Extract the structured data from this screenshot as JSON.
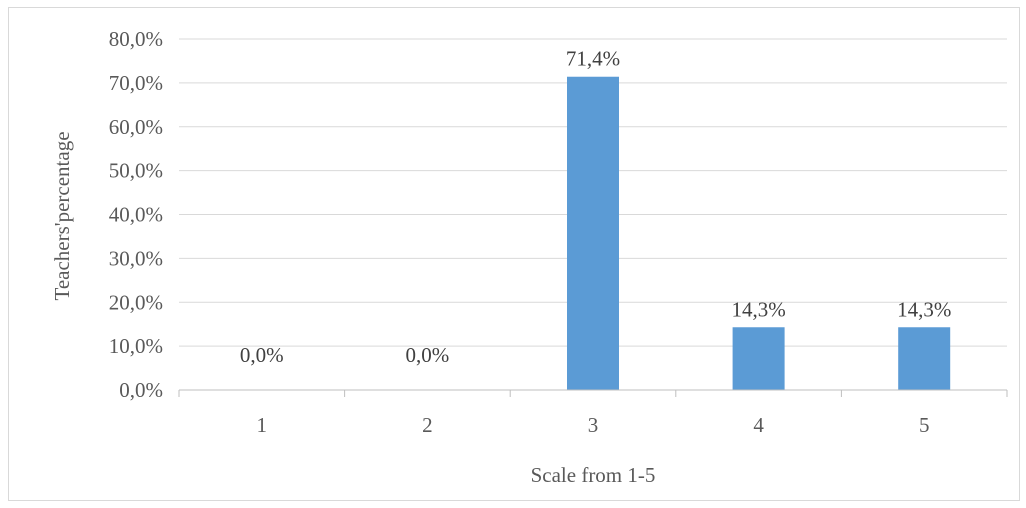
{
  "chart_data": {
    "type": "bar",
    "title": "",
    "xlabel": "Scale from 1-5",
    "ylabel": "Teachers'percentage",
    "categories": [
      "1",
      "2",
      "3",
      "4",
      "5"
    ],
    "values": [
      0.0,
      0.0,
      71.4,
      14.3,
      14.3
    ],
    "data_labels": [
      "0,0%",
      "0,0%",
      "71,4%",
      "14,3%",
      "14,3%"
    ],
    "ylim": [
      0,
      80
    ],
    "y_ticks": [
      0,
      10,
      20,
      30,
      40,
      50,
      60,
      70,
      80
    ],
    "y_tick_labels": [
      "0,0%",
      "10,0%",
      "20,0%",
      "30,0%",
      "40,0%",
      "50,0%",
      "60,0%",
      "70,0%",
      "80,0%"
    ],
    "grid": true,
    "legend": "none",
    "bar_color": "#5b9bd5"
  }
}
